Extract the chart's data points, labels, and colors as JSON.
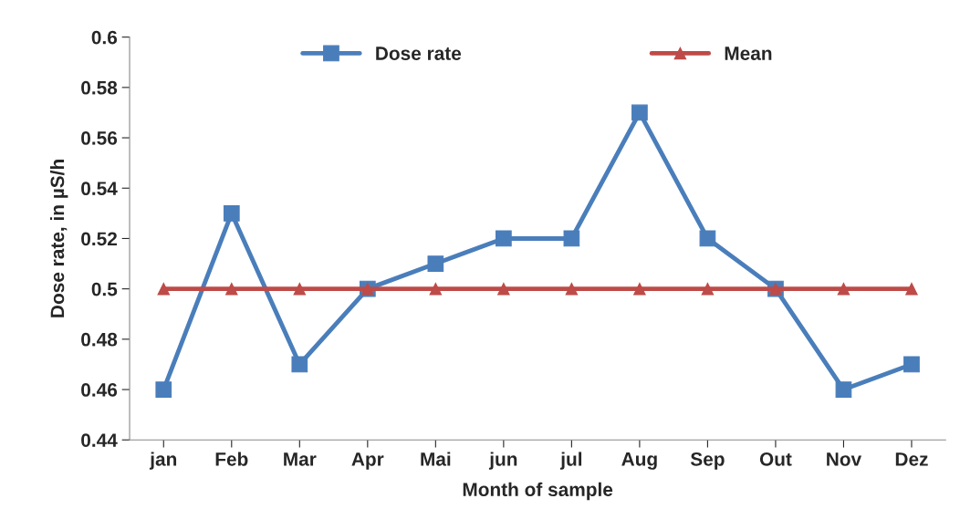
{
  "chart_data": {
    "type": "line",
    "xlabel": "Month of sample",
    "ylabel": "Dose rate, in µS/h",
    "categories": [
      "jan",
      "Feb",
      "Mar",
      "Apr",
      "Mai",
      "jun",
      "jul",
      "Aug",
      "Sep",
      "Out",
      "Nov",
      "Dez"
    ],
    "series": [
      {
        "name": "Dose rate",
        "color": "#4a7ebb",
        "marker": "square",
        "values": [
          0.46,
          0.53,
          0.47,
          0.5,
          0.51,
          0.52,
          0.52,
          0.57,
          0.52,
          0.5,
          0.46,
          0.47
        ]
      },
      {
        "name": "Mean",
        "color": "#be4b48",
        "marker": "triangle",
        "values": [
          0.5,
          0.5,
          0.5,
          0.5,
          0.5,
          0.5,
          0.5,
          0.5,
          0.5,
          0.5,
          0.5,
          0.5
        ]
      }
    ],
    "ylim": [
      0.44,
      0.6
    ],
    "yticks": [
      0.44,
      0.46,
      0.48,
      0.5,
      0.52,
      0.54,
      0.56,
      0.58,
      0.6
    ],
    "grid": false,
    "legend": "top",
    "line_style": "solid"
  }
}
